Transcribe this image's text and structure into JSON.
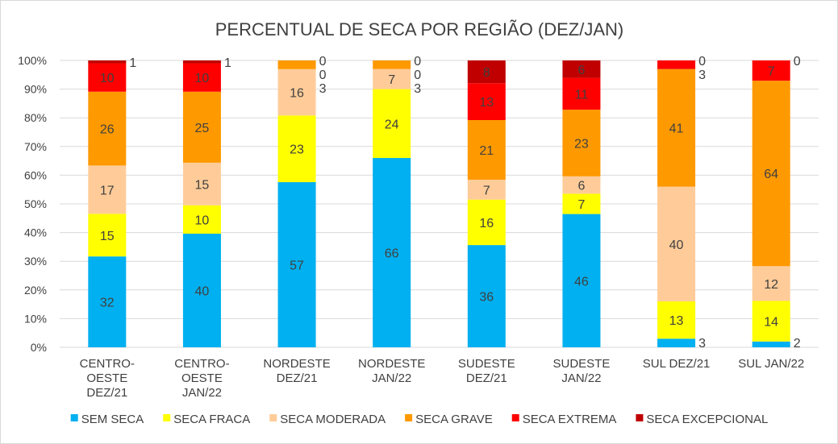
{
  "chart_data": {
    "type": "bar",
    "stacked": "percent",
    "title": "PERCENTUAL DE SECA POR REGIÃO (DEZ/JAN)",
    "categories": [
      [
        "CENTRO-OESTE",
        "DEZ/21"
      ],
      [
        "CENTRO-OESTE",
        "JAN/22"
      ],
      [
        "NORDESTE",
        "DEZ/21"
      ],
      [
        "NORDESTE",
        "JAN/22"
      ],
      [
        "SUDESTE",
        "DEZ/21"
      ],
      [
        "SUDESTE",
        "JAN/22"
      ],
      [
        "SUL DEZ/21"
      ],
      [
        "SUL JAN/22"
      ]
    ],
    "series": [
      {
        "name": "SEM SECA",
        "color": "#00b0f0",
        "values": [
          32,
          40,
          57,
          66,
          36,
          46,
          3,
          2
        ]
      },
      {
        "name": "SECA FRACA",
        "color": "#ffff00",
        "values": [
          15,
          10,
          23,
          24,
          16,
          7,
          13,
          14
        ]
      },
      {
        "name": "SECA MODERADA",
        "color": "#ffcc99",
        "values": [
          17,
          15,
          16,
          7,
          7,
          6,
          40,
          12
        ]
      },
      {
        "name": "SECA GRAVE",
        "color": "#ff9900",
        "values": [
          26,
          25,
          3,
          3,
          21,
          23,
          41,
          64
        ]
      },
      {
        "name": "SECA EXTREMA",
        "color": "#ff0000",
        "values": [
          10,
          10,
          0,
          0,
          13,
          11,
          3,
          7
        ]
      },
      {
        "name": "SECA EXCEPCIONAL",
        "color": "#c00000",
        "values": [
          1,
          1,
          0,
          0,
          8,
          6,
          0,
          0
        ]
      }
    ],
    "yticks": [
      "0%",
      "10%",
      "20%",
      "30%",
      "40%",
      "50%",
      "60%",
      "70%",
      "80%",
      "90%",
      "100%"
    ],
    "ylim": [
      0,
      100
    ],
    "grid": true,
    "legend": "bottom"
  }
}
